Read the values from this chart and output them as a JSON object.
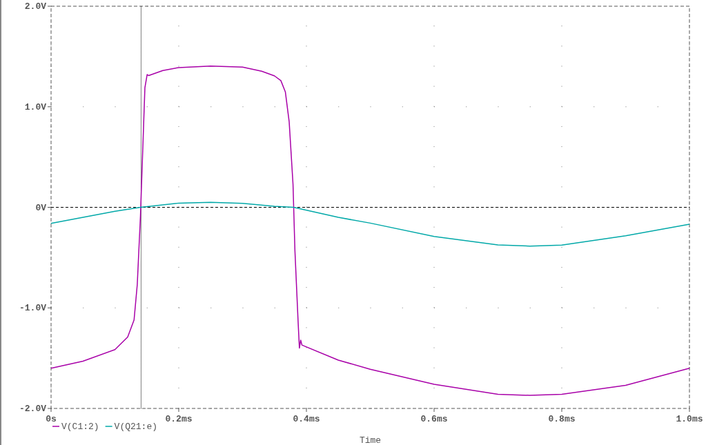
{
  "chart_data": {
    "type": "line",
    "xlabel": "Time",
    "x": [
      0,
      0.05,
      0.1,
      0.12,
      0.13,
      0.135,
      0.14,
      0.143,
      0.147,
      0.1505,
      0.153,
      0.175,
      0.2,
      0.25,
      0.3,
      0.33,
      0.35,
      0.36,
      0.367,
      0.373,
      0.379,
      0.382,
      0.387,
      0.389,
      0.391,
      0.393,
      0.45,
      0.5,
      0.6,
      0.7,
      0.75,
      0.8,
      0.9,
      1.0
    ],
    "series": [
      {
        "name": "V(C1:2)",
        "color": "#a800a8",
        "values": [
          -1.6,
          -1.53,
          -1.415,
          -1.29,
          -1.12,
          -0.77,
          -0.09,
          0.46,
          1.19,
          1.32,
          1.31,
          1.36,
          1.39,
          1.405,
          1.394,
          1.353,
          1.307,
          1.26,
          1.148,
          0.85,
          0.23,
          -0.43,
          -1.14,
          -1.4,
          -1.32,
          -1.37,
          -1.52,
          -1.61,
          -1.76,
          -1.86,
          -1.87,
          -1.86,
          -1.77,
          -1.6
        ]
      },
      {
        "name": "V(Q21:e)",
        "color": "#00a8a8",
        "x": [
          0,
          0.05,
          0.1,
          0.14,
          0.2,
          0.25,
          0.3,
          0.35,
          0.38,
          0.45,
          0.5,
          0.6,
          0.7,
          0.75,
          0.8,
          0.9,
          1.0
        ],
        "values": [
          -0.16,
          -0.1,
          -0.04,
          0,
          0.042,
          0.05,
          0.04,
          0.01,
          0,
          -0.1,
          -0.157,
          -0.29,
          -0.374,
          -0.386,
          -0.376,
          -0.283,
          -0.168
        ]
      }
    ],
    "xlim": [
      0,
      1.0
    ],
    "xticks": [
      {
        "value": 0,
        "label": "0s"
      },
      {
        "value": 0.2,
        "label": "0.2ms"
      },
      {
        "value": 0.4,
        "label": "0.4ms"
      },
      {
        "value": 0.6,
        "label": "0.6ms"
      },
      {
        "value": 0.8,
        "label": "0.8ms"
      },
      {
        "value": 1.0,
        "label": "1.0ms"
      }
    ],
    "ylim": [
      -2,
      2
    ],
    "yticks": [
      {
        "value": -2,
        "label": "-2.0V"
      },
      {
        "value": -1,
        "label": "-1.0V"
      },
      {
        "value": 0,
        "label": "0V"
      },
      {
        "value": 1,
        "label": "1.0V"
      },
      {
        "value": 2,
        "label": "2.0V"
      }
    ],
    "ref_lines": [
      {
        "axis": "y",
        "value": 0,
        "color": "#000000",
        "line_style": "dashed"
      },
      {
        "axis": "x",
        "value": 0.141,
        "color": "#000000",
        "line_style": "dotted"
      }
    ],
    "grid": true,
    "legend": "bottom left"
  }
}
